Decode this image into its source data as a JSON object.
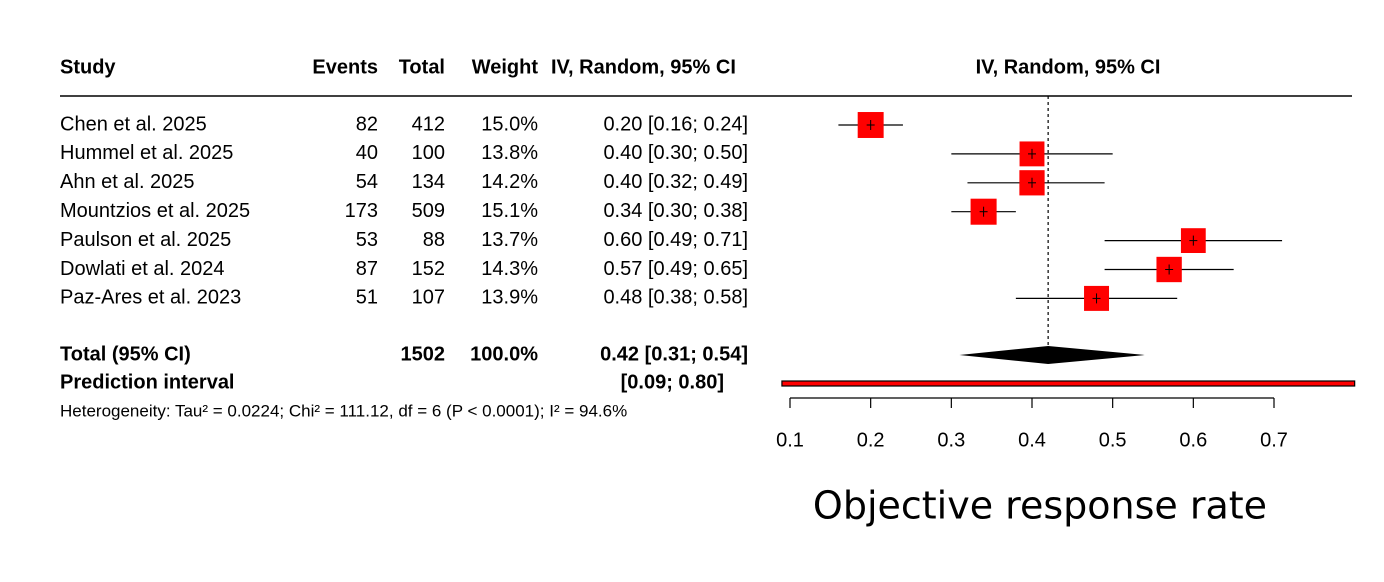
{
  "chart_data": {
    "type": "forest",
    "headers": {
      "study": "Study",
      "events": "Events",
      "total": "Total",
      "weight": "Weight",
      "ci": "IV, Random, 95% CI",
      "plot": "IV, Random, 95% CI"
    },
    "studies": [
      "Chen et al. 2025",
      "Hummel et al. 2025",
      "Ahn et al. 2025",
      "Mountzios et al. 2025",
      "Paulson et al. 2025",
      "Dowlati et al. 2024",
      "Paz-Ares et al. 2023"
    ],
    "events": [
      82,
      40,
      54,
      173,
      53,
      87,
      51
    ],
    "totals": [
      412,
      100,
      134,
      509,
      88,
      152,
      107
    ],
    "weights": [
      15.0,
      13.8,
      14.2,
      15.1,
      13.7,
      14.3,
      13.9
    ],
    "weight_labels": [
      "15.0%",
      "13.8%",
      "14.2%",
      "15.1%",
      "13.7%",
      "14.3%",
      "13.9%"
    ],
    "estimates": [
      0.2,
      0.4,
      0.4,
      0.34,
      0.6,
      0.57,
      0.48
    ],
    "lower": [
      0.16,
      0.3,
      0.32,
      0.3,
      0.49,
      0.49,
      0.38
    ],
    "upper": [
      0.24,
      0.5,
      0.49,
      0.38,
      0.71,
      0.65,
      0.58
    ],
    "ci_labels": [
      "0.20 [0.16; 0.24]",
      "0.40 [0.30; 0.50]",
      "0.40 [0.32; 0.49]",
      "0.34 [0.30; 0.38]",
      "0.60 [0.49; 0.71]",
      "0.57 [0.49; 0.65]",
      "0.48 [0.38; 0.58]"
    ],
    "pooled": {
      "label": "Total (95% CI)",
      "total": 1502,
      "weight_label": "100.0%",
      "estimate": 0.42,
      "lower": 0.31,
      "upper": 0.54,
      "ci_label": "0.42 [0.31; 0.54]"
    },
    "prediction": {
      "label": "Prediction interval",
      "lower": 0.09,
      "upper": 0.8,
      "ci_label": "[0.09; 0.80]"
    },
    "heterogeneity": "Heterogeneity: Tau² = 0.0224; Chi² = 111.12, df = 6 (P < 0.0001); I² = 94.6%",
    "xlabel": "Objective response rate",
    "xlim": [
      0.1,
      0.7
    ],
    "xticks": [
      0.1,
      0.2,
      0.3,
      0.4,
      0.5,
      0.6,
      0.7
    ],
    "color": "#ff0000"
  }
}
